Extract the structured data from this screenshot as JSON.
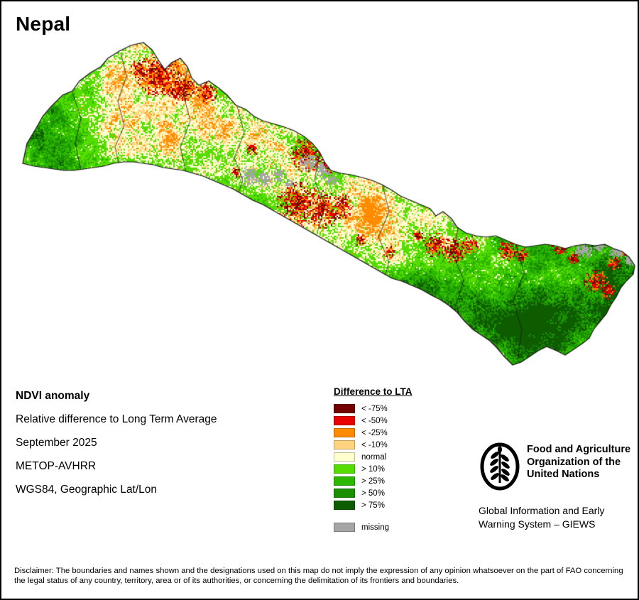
{
  "title": "Nepal",
  "info": {
    "lines": [
      "NDVI anomaly",
      "Relative difference to Long Term Average",
      "September 2025",
      "METOP-AVHRR",
      "WGS84, Geographic Lat/Lon"
    ]
  },
  "legend": {
    "title": "Difference to LTA",
    "items": [
      {
        "label": "< -75%",
        "color": "#730000"
      },
      {
        "label": "< -50%",
        "color": "#e80000"
      },
      {
        "label": "< -25%",
        "color": "#ff8c00"
      },
      {
        "label": "< -10%",
        "color": "#ffd37f"
      },
      {
        "label": "normal",
        "color": "#ffffd0"
      },
      {
        "label": "> 10%",
        "color": "#55dd00"
      },
      {
        "label": "> 25%",
        "color": "#2db800"
      },
      {
        "label": "> 50%",
        "color": "#1a8f00"
      },
      {
        "label": "> 75%",
        "color": "#0e5c00"
      }
    ],
    "missing": {
      "label": "missing",
      "color": "#a5a5a5"
    }
  },
  "fao": {
    "org_name": "Food and Agriculture Organization of the United Nations",
    "giews": "Global Information and Early Warning System – GIEWS"
  },
  "disclaimer": "Disclaimer: The boundaries and names shown and the designations used on this map do not imply the expression of any opinion whatsoever on the part of FAO concerning the legal status of any country, territory, area or of its authorities, or concerning the delimitation of its frontiers and boundaries."
}
